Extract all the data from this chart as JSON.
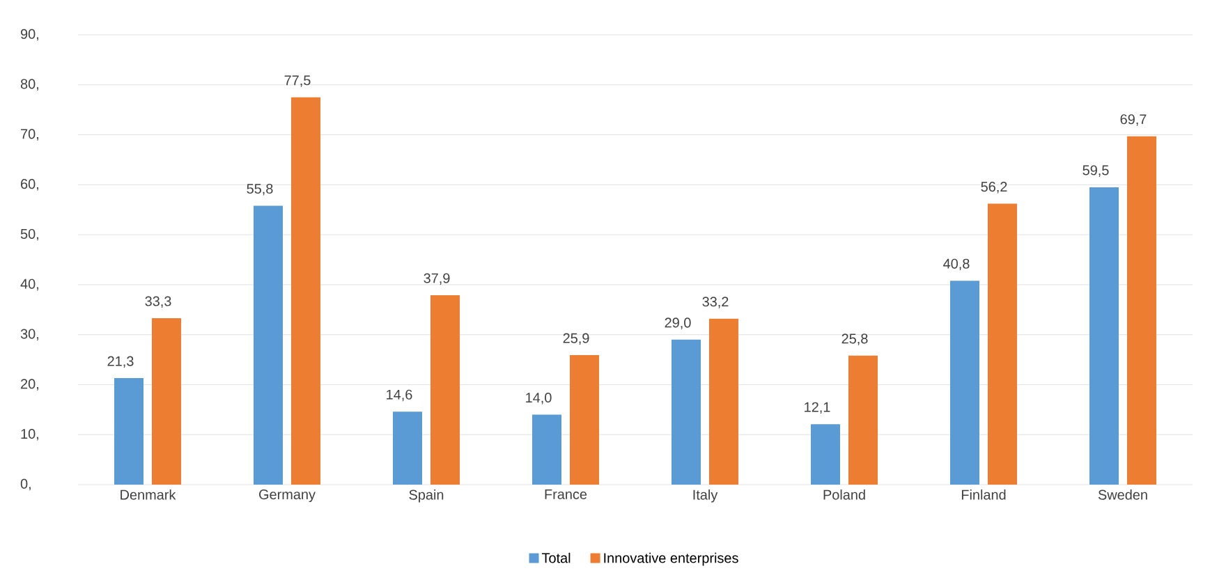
{
  "chart_data": {
    "type": "bar",
    "categories": [
      "Denmark",
      "Germany",
      "Spain",
      "France",
      "Italy",
      "Poland",
      "Finland",
      "Sweden"
    ],
    "series": [
      {
        "name": "Total",
        "color": "#5b9bd5",
        "values": [
          21.3,
          55.8,
          14.6,
          14.0,
          29.0,
          12.1,
          40.8,
          59.5
        ],
        "value_labels": [
          "21,3",
          "55,8",
          "14,6",
          "14,0",
          "29,0",
          "12,1",
          "40,8",
          "59,5"
        ]
      },
      {
        "name": "Innovative enterprises",
        "color": "#ed7d31",
        "values": [
          33.3,
          77.5,
          37.9,
          25.9,
          33.2,
          25.8,
          56.2,
          69.7
        ],
        "value_labels": [
          "33,3",
          "77,5",
          "37,9",
          "25,9",
          "33,2",
          "25,8",
          "56,2",
          "69,7"
        ]
      }
    ],
    "ylim": [
      0,
      90
    ],
    "yticks": [
      {
        "value": 0,
        "label": "0,"
      },
      {
        "value": 10,
        "label": "10,"
      },
      {
        "value": 20,
        "label": "20,"
      },
      {
        "value": 30,
        "label": "30,"
      },
      {
        "value": 40,
        "label": "40,"
      },
      {
        "value": 50,
        "label": "50,"
      },
      {
        "value": 60,
        "label": "60,"
      },
      {
        "value": 70,
        "label": "70,"
      },
      {
        "value": 80,
        "label": "80,"
      },
      {
        "value": 90,
        "label": "90,"
      }
    ],
    "grid": "y",
    "legend": "bottom"
  }
}
